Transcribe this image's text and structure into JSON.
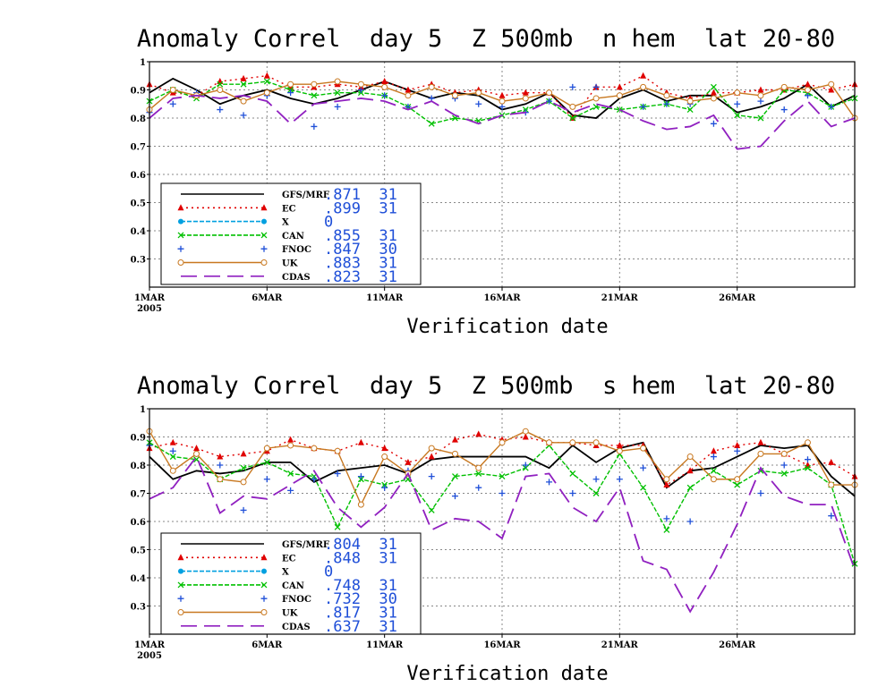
{
  "chart_data": [
    {
      "type": "line",
      "title": "Anomaly Correl  day 5  Z 500mb  n hem  lat 20-80",
      "xlabel": "Verification date",
      "ylabel": "",
      "xticks": [
        "1MAR",
        "6MAR",
        "11MAR",
        "16MAR",
        "21MAR",
        "26MAR"
      ],
      "xtick_days": [
        1,
        6,
        11,
        16,
        21,
        26
      ],
      "xtick_sub": "2005",
      "yticks": [
        "0.3",
        "0.4",
        "0.5",
        "0.6",
        "0.7",
        "0.8",
        "0.9",
        "1"
      ],
      "ylim": [
        0.2,
        1.0
      ],
      "xlim": [
        1,
        31
      ],
      "grid": true,
      "legend_position": "bottom-left",
      "series": [
        {
          "name": "GFS/MRF",
          "color": "#000000",
          "style": "solid",
          "marker": "none",
          "legend_value": ".871  31",
          "values": [
            0.89,
            0.94,
            0.9,
            0.85,
            0.88,
            0.9,
            0.87,
            0.85,
            0.87,
            0.9,
            0.93,
            0.9,
            0.87,
            0.89,
            0.88,
            0.83,
            0.85,
            0.89,
            0.81,
            0.8,
            0.87,
            0.9,
            0.86,
            0.88,
            0.88,
            0.82,
            0.84,
            0.87,
            0.92,
            0.84,
            0.88
          ]
        },
        {
          "name": "EC",
          "color": "#e00000",
          "style": "dotted",
          "marker": "triangle",
          "legend_value": ".899  31",
          "values": [
            0.92,
            0.89,
            0.88,
            0.93,
            0.94,
            0.95,
            0.91,
            0.91,
            0.92,
            0.91,
            0.93,
            0.9,
            0.92,
            0.89,
            0.9,
            0.88,
            0.89,
            0.89,
            0.8,
            0.91,
            0.91,
            0.95,
            0.89,
            0.87,
            0.89,
            0.89,
            0.9,
            0.9,
            0.92,
            0.9,
            0.92
          ]
        },
        {
          "name": "X",
          "color": "#00a0e0",
          "style": "dashed",
          "marker": "circle",
          "legend_value": "0",
          "values": []
        },
        {
          "name": "CAN",
          "color": "#00c000",
          "style": "dashed",
          "marker": "x",
          "legend_value": ".855  31",
          "values": [
            0.86,
            0.9,
            0.87,
            0.92,
            0.92,
            0.93,
            0.9,
            0.88,
            0.89,
            0.89,
            0.88,
            0.84,
            0.78,
            0.8,
            0.79,
            0.81,
            0.83,
            0.86,
            0.8,
            0.84,
            0.83,
            0.84,
            0.85,
            0.83,
            0.91,
            0.81,
            0.8,
            0.9,
            0.89,
            0.84,
            0.87
          ]
        },
        {
          "name": "FNOC",
          "color": "#1f4fd8",
          "style": "none",
          "marker": "plus",
          "legend_value": ".847  30",
          "values": [
            0.82,
            0.85,
            0.89,
            0.83,
            0.81,
            0.88,
            0.89,
            0.77,
            0.84,
            0.9,
            0.88,
            0.84,
            0.87,
            0.87,
            0.85,
            0.84,
            0.82,
            0.86,
            0.91,
            0.91,
            0.88,
            0.84,
            0.85,
            0.85,
            0.78,
            0.85,
            0.86,
            0.83,
            0.88,
            0.84,
            null
          ]
        },
        {
          "name": "UK",
          "color": "#c87820",
          "style": "solid",
          "marker": "hollow-circle",
          "legend_value": ".883  31",
          "values": [
            0.83,
            0.9,
            0.88,
            0.9,
            0.86,
            0.89,
            0.92,
            0.92,
            0.93,
            0.92,
            0.91,
            0.88,
            0.91,
            0.88,
            0.89,
            0.86,
            0.87,
            0.89,
            0.84,
            0.87,
            0.88,
            0.91,
            0.88,
            0.86,
            0.87,
            0.89,
            0.88,
            0.91,
            0.9,
            0.92,
            0.8
          ]
        },
        {
          "name": "CDAS",
          "color": "#9020c0",
          "style": "longdash",
          "marker": "none",
          "legend_value": ".823  31",
          "values": [
            0.8,
            0.87,
            0.88,
            0.87,
            0.88,
            0.86,
            0.78,
            0.85,
            0.86,
            0.87,
            0.86,
            0.83,
            0.86,
            0.81,
            0.78,
            0.81,
            0.82,
            0.86,
            0.82,
            0.85,
            0.83,
            0.79,
            0.76,
            0.77,
            0.81,
            0.69,
            0.7,
            0.79,
            0.86,
            0.77,
            0.8
          ]
        }
      ]
    },
    {
      "type": "line",
      "title": "Anomaly Correl  day 5  Z 500mb  s hem  lat 20-80",
      "xlabel": "Verification date",
      "ylabel": "",
      "xticks": [
        "1MAR",
        "6MAR",
        "11MAR",
        "16MAR",
        "21MAR",
        "26MAR"
      ],
      "xtick_days": [
        1,
        6,
        11,
        16,
        21,
        26
      ],
      "xtick_sub": "2005",
      "yticks": [
        "0.3",
        "0.4",
        "0.5",
        "0.6",
        "0.7",
        "0.8",
        "0.9",
        "1"
      ],
      "ylim": [
        0.2,
        1.0
      ],
      "xlim": [
        1,
        31
      ],
      "grid": true,
      "legend_position": "bottom-left",
      "series": [
        {
          "name": "GFS/MRF",
          "color": "#000000",
          "style": "solid",
          "marker": "none",
          "legend_value": ".804  31",
          "values": [
            0.83,
            0.75,
            0.78,
            0.77,
            0.78,
            0.81,
            0.81,
            0.74,
            0.78,
            0.79,
            0.8,
            0.77,
            0.82,
            0.83,
            0.83,
            0.83,
            0.83,
            0.79,
            0.87,
            0.81,
            0.86,
            0.88,
            0.72,
            0.78,
            0.79,
            0.83,
            0.87,
            0.86,
            0.87,
            0.76,
            0.69
          ]
        },
        {
          "name": "EC",
          "color": "#e00000",
          "style": "dotted",
          "marker": "triangle",
          "legend_value": ".848  31",
          "values": [
            0.86,
            0.88,
            0.86,
            0.83,
            0.84,
            0.85,
            0.89,
            0.86,
            0.85,
            0.88,
            0.86,
            0.81,
            0.83,
            0.89,
            0.91,
            0.89,
            0.9,
            0.88,
            0.88,
            0.87,
            0.87,
            0.87,
            0.73,
            0.78,
            0.85,
            0.87,
            0.88,
            0.84,
            0.8,
            0.81,
            0.76
          ]
        },
        {
          "name": "X",
          "color": "#00a0e0",
          "style": "dashed",
          "marker": "circle",
          "legend_value": "0",
          "values": []
        },
        {
          "name": "CAN",
          "color": "#00c000",
          "style": "dashed",
          "marker": "x",
          "legend_value": ".748  31",
          "values": [
            0.88,
            0.83,
            0.82,
            0.75,
            0.79,
            0.81,
            0.77,
            0.76,
            0.58,
            0.75,
            0.73,
            0.75,
            0.64,
            0.76,
            0.77,
            0.76,
            0.79,
            0.87,
            0.77,
            0.7,
            0.84,
            0.72,
            0.57,
            0.72,
            0.78,
            0.73,
            0.78,
            0.77,
            0.79,
            0.73,
            0.45
          ]
        },
        {
          "name": "FNOC",
          "color": "#1f4fd8",
          "style": "none",
          "marker": "plus",
          "legend_value": ".732  30",
          "values": [
            0.87,
            0.85,
            0.84,
            0.8,
            0.64,
            0.75,
            0.71,
            0.75,
            0.77,
            0.76,
            0.72,
            0.78,
            0.76,
            0.69,
            0.72,
            0.7,
            0.8,
            0.74,
            0.7,
            0.75,
            0.75,
            0.79,
            0.61,
            0.6,
            0.83,
            0.85,
            0.7,
            0.8,
            0.82,
            0.62,
            null
          ]
        },
        {
          "name": "UK",
          "color": "#c87820",
          "style": "solid",
          "marker": "hollow-circle",
          "legend_value": ".817  31",
          "values": [
            0.92,
            0.78,
            0.84,
            0.75,
            0.74,
            0.86,
            0.87,
            0.86,
            0.85,
            0.66,
            0.83,
            0.77,
            0.86,
            0.84,
            0.79,
            0.88,
            0.92,
            0.88,
            0.88,
            0.88,
            0.85,
            0.86,
            0.75,
            0.83,
            0.75,
            0.75,
            0.84,
            0.84,
            0.88,
            0.73,
            0.73
          ]
        },
        {
          "name": "CDAS",
          "color": "#9020c0",
          "style": "longdash",
          "marker": "none",
          "legend_value": ".637  31",
          "values": [
            0.68,
            0.72,
            0.83,
            0.63,
            0.69,
            0.68,
            0.73,
            0.78,
            0.65,
            0.58,
            0.65,
            0.77,
            0.57,
            0.61,
            0.6,
            0.54,
            0.76,
            0.77,
            0.65,
            0.6,
            0.72,
            0.46,
            0.43,
            0.28,
            0.42,
            0.59,
            0.79,
            0.69,
            0.66,
            0.66,
            0.43
          ]
        }
      ]
    }
  ]
}
